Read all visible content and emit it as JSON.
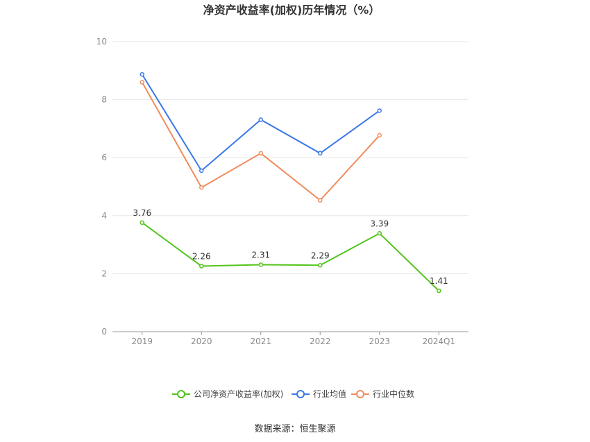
{
  "chart_data": {
    "type": "line",
    "title": "净资产收益率(加权)历年情况（%）",
    "categories": [
      "2019",
      "2020",
      "2021",
      "2022",
      "2023",
      "2024Q1"
    ],
    "ylim": [
      0,
      10
    ],
    "yticks": [
      0,
      2,
      4,
      6,
      8,
      10
    ],
    "grid": true,
    "legend_position": "bottom",
    "series": [
      {
        "name": "公司净资产收益率(加权)",
        "color": "#52c41a",
        "values": [
          3.76,
          2.26,
          2.31,
          2.29,
          3.39,
          1.41
        ],
        "labels": [
          "3.76",
          "2.26",
          "2.31",
          "2.29",
          "3.39",
          "1.41"
        ]
      },
      {
        "name": "行业均值",
        "color": "#3b78e7",
        "values": [
          8.87,
          5.55,
          7.31,
          6.15,
          7.62,
          null
        ]
      },
      {
        "name": "行业中位数",
        "color": "#f08c5b",
        "values": [
          8.6,
          4.97,
          6.15,
          4.53,
          6.77,
          null
        ]
      }
    ]
  },
  "source": "数据来源：恒生聚源"
}
